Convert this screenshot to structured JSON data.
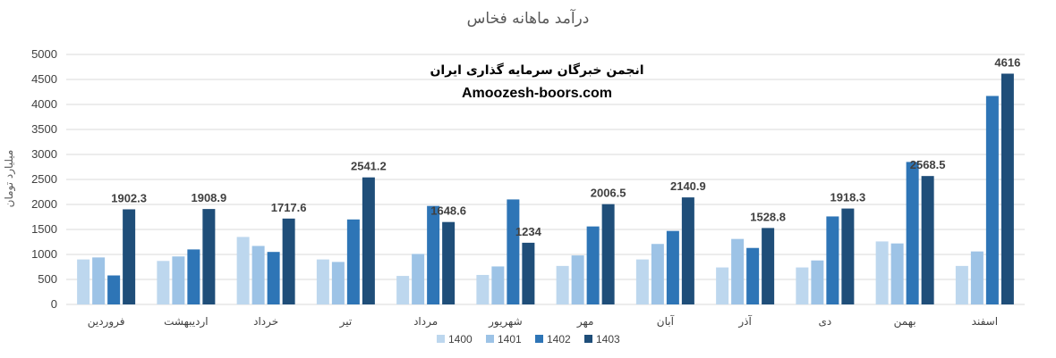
{
  "watermark": {
    "line1": "انجمن خبرگان سرمایه گذاری ایران",
    "line2": "Amoozesh-boors.com"
  },
  "chart_data": {
    "type": "bar",
    "title": "درآمد ماهانه فخاس",
    "xlabel": "",
    "ylabel": "میلیارد تومان",
    "ylim": [
      0,
      5000
    ],
    "yticks": [
      0,
      500,
      1000,
      1500,
      2000,
      2500,
      3000,
      3500,
      4000,
      4500,
      5000
    ],
    "grid": true,
    "legend_position": "bottom",
    "categories": [
      "فروردین",
      "اردیبهشت",
      "خرداد",
      "تیر",
      "مرداد",
      "شهریور",
      "مهر",
      "آبان",
      "آذر",
      "دی",
      "بهمن",
      "اسفند"
    ],
    "series": [
      {
        "name": "1400",
        "color": "#bdd7ee",
        "values": [
          900,
          870,
          1350,
          900,
          570,
          590,
          770,
          900,
          740,
          740,
          1260,
          770
        ]
      },
      {
        "name": "1401",
        "color": "#9dc3e6",
        "values": [
          940,
          960,
          1170,
          850,
          1010,
          760,
          980,
          1210,
          1310,
          880,
          1220,
          1060
        ]
      },
      {
        "name": "1402",
        "color": "#2e75b6",
        "values": [
          580,
          1100,
          1050,
          1700,
          1970,
          2100,
          1560,
          1470,
          1130,
          1760,
          2850,
          4170
        ]
      },
      {
        "name": "1403",
        "color": "#1f4e79",
        "values": [
          1902.3,
          1908.9,
          1717.6,
          2541.2,
          1648.6,
          1234,
          2006.5,
          2140.9,
          1528.8,
          1918.3,
          2568.5,
          4616
        ],
        "data_labels": [
          "1902.3",
          "1908.9",
          "1717.6",
          "2541.2",
          "1648.6",
          "1234",
          "2006.5",
          "2140.9",
          "1528.8",
          "1918.3",
          "2568.5",
          "4616"
        ]
      }
    ]
  }
}
